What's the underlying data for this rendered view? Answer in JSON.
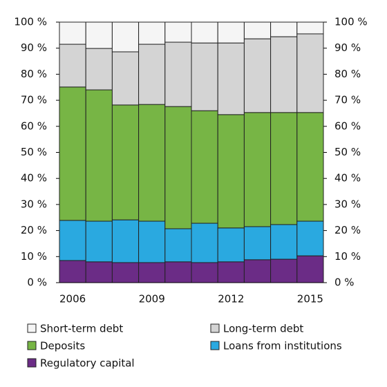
{
  "chart_data": {
    "type": "stacked_bar",
    "categories": [
      "2006",
      null,
      null,
      "2009",
      null,
      null,
      "2012",
      null,
      null,
      "2015"
    ],
    "series": [
      {
        "name": "Regulatory capital",
        "color": "#6b2c86",
        "values": [
          8.5,
          8.0,
          7.7,
          7.7,
          8.0,
          7.7,
          8.0,
          8.8,
          9.0,
          10.3
        ]
      },
      {
        "name": "Loans from institutions",
        "color": "#2aa9e0",
        "values": [
          15.4,
          15.6,
          16.4,
          15.9,
          12.7,
          15.1,
          13.0,
          12.7,
          13.3,
          13.3
        ]
      },
      {
        "name": "Deposits",
        "color": "#77b545",
        "values": [
          51.2,
          50.4,
          44.1,
          44.8,
          46.9,
          43.2,
          43.5,
          43.8,
          43.0,
          41.7
        ]
      },
      {
        "name": "Long-term debt",
        "color": "#d4d4d4",
        "values": [
          16.4,
          15.9,
          20.4,
          23.1,
          24.7,
          26.0,
          27.5,
          28.3,
          29.1,
          30.2
        ]
      },
      {
        "name": "Short-term debt",
        "color": "#f5f5f5",
        "values": [
          8.5,
          10.1,
          11.4,
          8.5,
          7.7,
          8.0,
          8.0,
          6.4,
          5.6,
          4.5
        ]
      }
    ],
    "ylim": [
      0,
      100
    ],
    "yticks": [
      {
        "value": 0,
        "label": "0 %"
      },
      {
        "value": 10,
        "label": "10 %"
      },
      {
        "value": 20,
        "label": "20 %"
      },
      {
        "value": 30,
        "label": "30 %"
      },
      {
        "value": 40,
        "label": "40 %"
      },
      {
        "value": 50,
        "label": "50 %"
      },
      {
        "value": 60,
        "label": "60 %"
      },
      {
        "value": 70,
        "label": "70 %"
      },
      {
        "value": 80,
        "label": "80 %"
      },
      {
        "value": 90,
        "label": "90 %"
      },
      {
        "value": 100,
        "label": "100 %"
      }
    ],
    "grid": false
  }
}
